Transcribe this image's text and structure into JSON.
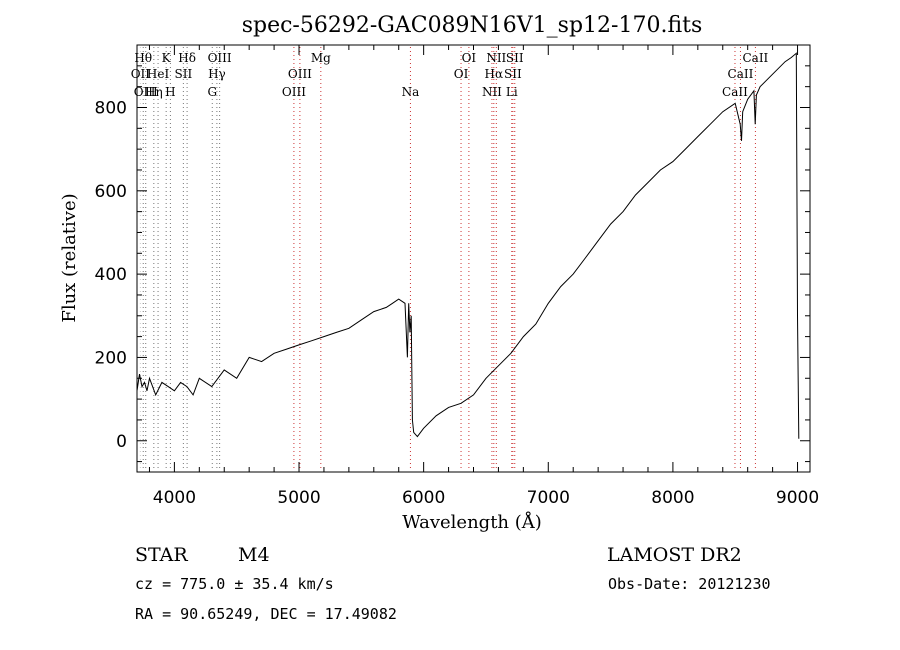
{
  "chart_data": {
    "type": "line",
    "title": "spec-56292-GAC089N16V1_sp12-170.fits",
    "xlabel": "Wavelength (Å)",
    "ylabel": "Flux (relative)",
    "xlim": [
      3700,
      9100
    ],
    "ylim": [
      -75,
      950
    ],
    "xticks": [
      4000,
      5000,
      6000,
      7000,
      8000,
      9000
    ],
    "yticks": [
      0,
      200,
      400,
      600,
      800
    ],
    "grid": false,
    "series": [
      {
        "x": [
          3700,
          3720,
          3740,
          3760,
          3780,
          3800,
          3850,
          3900,
          3950,
          4000,
          4050,
          4100,
          4150,
          4200,
          4300,
          4400,
          4500,
          4600,
          4700,
          4800,
          4900,
          5000,
          5100,
          5200,
          5300,
          5400,
          5500,
          5600,
          5700,
          5750,
          5800,
          5850,
          5870,
          5880,
          5890,
          5900,
          5910,
          5920,
          5950,
          6000,
          6100,
          6200,
          6300,
          6400,
          6500,
          6600,
          6700,
          6800,
          6900,
          7000,
          7100,
          7200,
          7300,
          7400,
          7500,
          7600,
          7700,
          7800,
          7900,
          8000,
          8100,
          8200,
          8300,
          8400,
          8500,
          8540,
          8550,
          8560,
          8600,
          8650,
          8660,
          8670,
          8700,
          8800,
          8900,
          8950,
          8990,
          9000,
          9010
        ],
        "y": [
          120,
          160,
          130,
          140,
          120,
          150,
          110,
          140,
          130,
          120,
          140,
          130,
          110,
          150,
          130,
          170,
          150,
          200,
          190,
          210,
          220,
          230,
          240,
          250,
          260,
          270,
          290,
          310,
          320,
          330,
          340,
          330,
          200,
          330,
          260,
          300,
          50,
          20,
          10,
          30,
          60,
          80,
          90,
          110,
          150,
          180,
          210,
          250,
          280,
          330,
          370,
          400,
          440,
          480,
          520,
          550,
          590,
          620,
          650,
          670,
          700,
          730,
          760,
          790,
          810,
          760,
          720,
          790,
          820,
          840,
          760,
          830,
          850,
          880,
          910,
          920,
          930,
          300,
          5
        ]
      }
    ],
    "lines": [
      {
        "wavelength": 3727,
        "label": "OII",
        "row": 2,
        "color": "#cccccc"
      },
      {
        "wavelength": 3750,
        "label": "Hθ",
        "row": 1,
        "color": "#777777"
      },
      {
        "wavelength": 3770,
        "label": "OIII",
        "row": 3,
        "color": "#777777"
      },
      {
        "wavelength": 3835,
        "label": "Hη",
        "row": 3,
        "color": "#777777"
      },
      {
        "wavelength": 3869,
        "label": "HeI",
        "row": 2,
        "color": "#777777"
      },
      {
        "wavelength": 3934,
        "label": "K",
        "row": 1,
        "color": "#777777"
      },
      {
        "wavelength": 3968,
        "label": "H",
        "row": 3,
        "color": "#777777"
      },
      {
        "wavelength": 4072,
        "label": "SII",
        "row": 2,
        "color": "#777777"
      },
      {
        "wavelength": 4102,
        "label": "Hδ",
        "row": 1,
        "color": "#777777"
      },
      {
        "wavelength": 4304,
        "label": "G",
        "row": 3,
        "color": "#777777"
      },
      {
        "wavelength": 4341,
        "label": "Hγ",
        "row": 2,
        "color": "#777777"
      },
      {
        "wavelength": 4363,
        "label": "OIII",
        "row": 1,
        "color": "#777777"
      },
      {
        "wavelength": 4959,
        "label": "OIII",
        "row": 3,
        "color": "#cc3333"
      },
      {
        "wavelength": 5007,
        "label": "OIII",
        "row": 2,
        "color": "#cc3333"
      },
      {
        "wavelength": 5175,
        "label": "Mg",
        "row": 1,
        "color": "#cc3333"
      },
      {
        "wavelength": 5894,
        "label": "Na",
        "row": 3,
        "color": "#cc3333"
      },
      {
        "wavelength": 6300,
        "label": "OI",
        "row": 2,
        "color": "#cc3333"
      },
      {
        "wavelength": 6363,
        "label": "OI",
        "row": 1,
        "color": "#cc3333"
      },
      {
        "wavelength": 6548,
        "label": "NII",
        "row": 3,
        "color": "#cc3333"
      },
      {
        "wavelength": 6563,
        "label": "Hα",
        "row": 2,
        "color": "#cc3333"
      },
      {
        "wavelength": 6583,
        "label": "NII",
        "row": 1,
        "color": "#cc3333"
      },
      {
        "wavelength": 6707,
        "label": "Li",
        "row": 3,
        "color": "#cc3333"
      },
      {
        "wavelength": 6716,
        "label": "SII",
        "row": 2,
        "color": "#cc3333"
      },
      {
        "wavelength": 6731,
        "label": "SII",
        "row": 1,
        "color": "#cc3333"
      },
      {
        "wavelength": 8498,
        "label": "CaII",
        "row": 3,
        "color": "#cc3333"
      },
      {
        "wavelength": 8542,
        "label": "CaII",
        "row": 2,
        "color": "#cc3333"
      },
      {
        "wavelength": 8662,
        "label": "CaII",
        "row": 1,
        "color": "#cc3333"
      }
    ]
  },
  "info": {
    "class_label": "STAR",
    "subclass": "M4",
    "survey": "LAMOST DR2",
    "redshift_text": "cz = 775.0 ± 35.4 km/s",
    "obs_date_text": "Obs-Date: 20121230",
    "coords_text": "RA =  90.65249, DEC =  17.49082"
  }
}
